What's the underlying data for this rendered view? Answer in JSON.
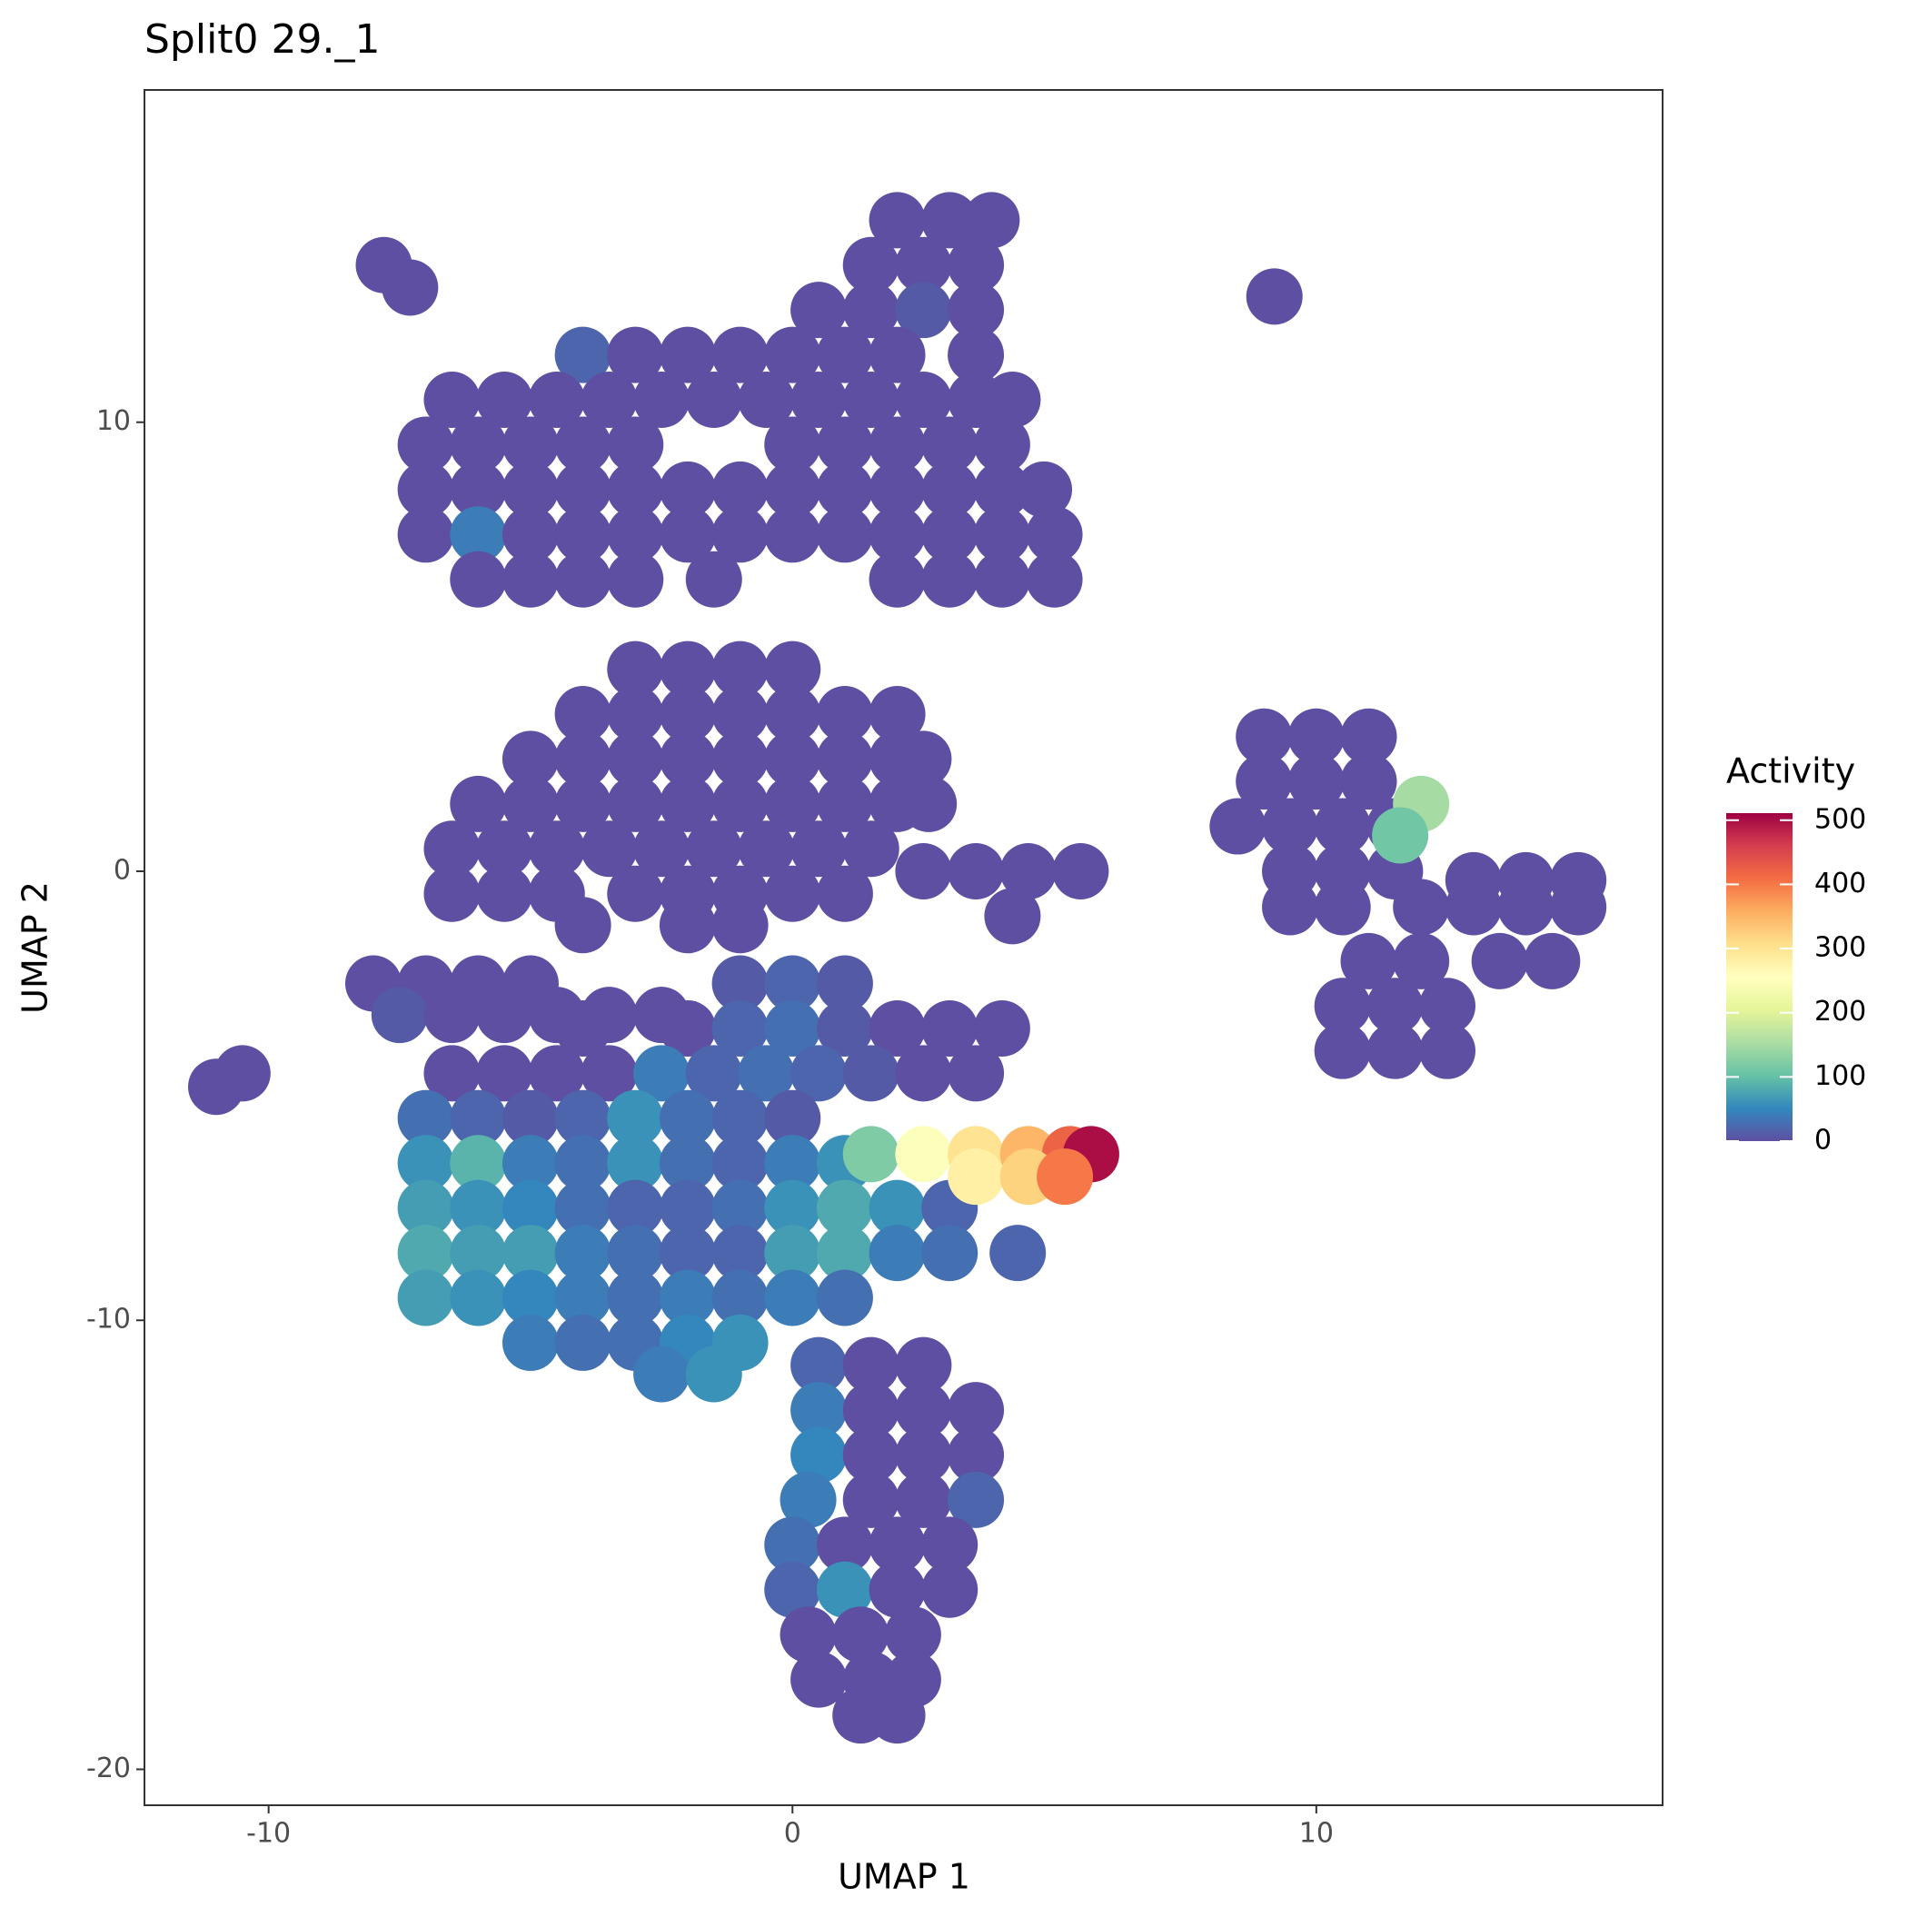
{
  "chart_data": {
    "type": "scatter",
    "title": "Split0 29._1",
    "x_label": "UMAP 1",
    "y_label": "UMAP 2",
    "legend_title": "Activity",
    "xlim": [
      -12.37,
      16.61
    ],
    "ylim": [
      -20.8,
      17.4
    ],
    "xticks": [
      -10,
      0,
      10
    ],
    "yticks": [
      -20,
      -10,
      0,
      10
    ],
    "colorlim": [
      0,
      511
    ],
    "colorticks": [
      0,
      100,
      200,
      300,
      400,
      500
    ],
    "palette": [
      "#5E4FA2",
      "#3288BD",
      "#66C2A5",
      "#ABDDA4",
      "#E6F598",
      "#FFFFBF",
      "#FEE08B",
      "#FDAE61",
      "#F46D43",
      "#D53E4F",
      "#9E0142"
    ],
    "x": [
      2,
      3,
      3.8,
      1.5,
      2.5,
      3.5,
      0.5,
      1.5,
      2.5,
      3.5,
      -4,
      -3,
      -2,
      -1,
      0,
      1,
      2,
      3.5,
      -6.5,
      -5.5,
      -4.5,
      -3.5,
      -2.5,
      -1.5,
      -0.5,
      0.5,
      1.5,
      2.5,
      3.5,
      4.2,
      -7,
      -6,
      -5,
      -4,
      -3,
      0,
      1,
      2,
      3,
      4,
      -7,
      -6,
      -5,
      -4,
      -3,
      -2,
      -1,
      0,
      1,
      2,
      3,
      4,
      4.8,
      -7,
      -6,
      -5,
      -4,
      -3,
      -2,
      -1,
      0,
      1,
      2,
      3,
      4,
      5,
      -6,
      -5,
      -4,
      -3,
      -1.5,
      2,
      3,
      4,
      5,
      -7.8,
      -7.3,
      9.2,
      -11,
      -10.5,
      -3,
      -2,
      -1,
      0,
      -4,
      -3,
      -2,
      -1,
      0,
      1,
      2,
      -5,
      -4,
      -3,
      -2,
      -1,
      0,
      1,
      2,
      2.5,
      -6,
      -5,
      -4,
      -3,
      -2,
      -1,
      0,
      1,
      2,
      2.6,
      -6.5,
      -5.5,
      -4.5,
      -3.5,
      -2.5,
      -1.5,
      -0.5,
      0.5,
      1.5,
      -6.5,
      -5.5,
      -4.5,
      -3,
      -2,
      -1,
      0,
      1,
      -4,
      -2,
      -1,
      2.5,
      3.5,
      4.5,
      5.5,
      4.2,
      -8,
      -7,
      -6,
      -5,
      -7.5,
      -6.5,
      -5.5,
      -4.5,
      -3.5,
      -2.5,
      -1,
      0,
      1,
      -4,
      -2,
      -1,
      0,
      1,
      2,
      3,
      4,
      -6.5,
      -5.5,
      -4.5,
      -3.5,
      -2.5,
      -1.5,
      -0.5,
      0.5,
      1.5,
      2.5,
      3.5,
      -7,
      -6,
      -5,
      -4,
      -3,
      -2,
      -1,
      0,
      -7,
      -6,
      -5,
      -4,
      -3,
      -2,
      -1,
      0,
      1,
      -7,
      -6,
      -5,
      -4,
      -3,
      -2,
      -1,
      0,
      1,
      2,
      3,
      -7,
      -6,
      -5,
      -4,
      -3,
      -2,
      -1,
      0,
      1,
      2,
      3,
      4.3,
      -7,
      -6,
      -5,
      -4,
      -3,
      -2,
      -1,
      0,
      1,
      -5,
      -4,
      -3,
      -2,
      -1,
      -2.5,
      -1.5,
      0.5,
      1.5,
      2.5,
      0.5,
      1.5,
      2.5,
      3.5,
      0.5,
      1.5,
      2.5,
      3.5,
      0.3,
      1.5,
      2.5,
      3.5,
      0,
      1,
      2,
      3,
      0,
      1,
      2,
      3,
      0.3,
      1.3,
      2.3,
      0.5,
      1.5,
      2.3,
      1.3,
      2,
      9,
      10,
      11,
      9,
      10,
      11,
      8.5,
      9.5,
      10.5,
      11.5,
      9.5,
      10.5,
      11.5,
      9.5,
      10.5,
      12,
      13,
      14,
      15,
      13,
      14,
      15,
      11,
      12,
      13.5,
      14.5,
      10.5,
      11.5,
      12.5,
      10.5,
      11.5,
      12.5,
      12,
      11.6,
      1.5,
      2.5,
      3.5,
      4.5,
      5.3,
      5.7,
      3.5,
      4.5,
      5.2
    ],
    "values": [
      14.5,
      14.5,
      14.5,
      13.5,
      13.5,
      13.5,
      12.5,
      12.5,
      12.5,
      12.5,
      11.5,
      11.5,
      11.5,
      11.5,
      11.5,
      11.5,
      11.5,
      11.5,
      10.5,
      10.5,
      10.5,
      10.5,
      10.5,
      10.5,
      10.5,
      10.5,
      10.5,
      10.5,
      10.5,
      10.5,
      9.5,
      9.5,
      9.5,
      9.5,
      9.5,
      9.5,
      9.5,
      9.5,
      9.5,
      9.5,
      8.5,
      8.5,
      8.5,
      8.5,
      8.5,
      8.5,
      8.5,
      8.5,
      8.5,
      8.5,
      8.5,
      8.5,
      8.5,
      7.5,
      7.5,
      7.5,
      7.5,
      7.5,
      7.5,
      7.5,
      7.5,
      7.5,
      7.5,
      7.5,
      7.5,
      7.5,
      6.5,
      6.5,
      6.5,
      6.5,
      6.5,
      6.5,
      6.5,
      6.5,
      6.5,
      13.5,
      13,
      12.8,
      -4.8,
      -4.5,
      4.5,
      4.5,
      4.5,
      4.5,
      3.5,
      3.5,
      3.5,
      3.5,
      3.5,
      3.5,
      3.5,
      2.5,
      2.5,
      2.5,
      2.5,
      2.5,
      2.5,
      2.5,
      2.5,
      2.5,
      1.5,
      1.5,
      1.5,
      1.5,
      1.5,
      1.5,
      1.5,
      1.5,
      1.5,
      1.5,
      0.5,
      0.5,
      0.5,
      0.5,
      0.5,
      0.5,
      0.5,
      0.5,
      0.5,
      -0.5,
      -0.5,
      -0.5,
      -0.5,
      -0.5,
      -0.5,
      -0.5,
      -0.5,
      -1.2,
      -1.2,
      -1.2,
      0,
      0,
      0,
      0,
      -1,
      -2.5,
      -2.5,
      -2.5,
      -2.5,
      -3.2,
      -3.2,
      -3.2,
      -3.2,
      -3.2,
      -3.2,
      -2.5,
      -2.5,
      -2.5,
      -3.5,
      -3.5,
      -3.5,
      -3.5,
      -3.5,
      -3.5,
      -3.5,
      -3.5,
      -4.5,
      -4.5,
      -4.5,
      -4.5,
      -4.5,
      -4.5,
      -4.5,
      -4.5,
      -4.5,
      -4.5,
      -4.5,
      -5.5,
      -5.5,
      -5.5,
      -5.5,
      -5.5,
      -5.5,
      -5.5,
      -5.5,
      -6.5,
      -6.5,
      -6.5,
      -6.5,
      -6.5,
      -6.5,
      -6.5,
      -6.5,
      -6.5,
      -7.5,
      -7.5,
      -7.5,
      -7.5,
      -7.5,
      -7.5,
      -7.5,
      -7.5,
      -7.5,
      -7.5,
      -7.5,
      -8.5,
      -8.5,
      -8.5,
      -8.5,
      -8.5,
      -8.5,
      -8.5,
      -8.5,
      -8.5,
      -8.5,
      -8.5,
      -8.5,
      -9.5,
      -9.5,
      -9.5,
      -9.5,
      -9.5,
      -9.5,
      -9.5,
      -9.5,
      -9.5,
      -10.5,
      -10.5,
      -10.5,
      -10.5,
      -10.5,
      -11.2,
      -11.2,
      -11,
      -11,
      -11,
      -12,
      -12,
      -12,
      -12,
      -13,
      -13,
      -13,
      -13,
      -14,
      -14,
      -14,
      -14,
      -15,
      -15,
      -15,
      -15,
      -16,
      -16,
      -16,
      -16,
      -17,
      -17,
      -17,
      -18,
      -18,
      -18,
      -18.8,
      -18.8,
      3,
      3,
      3,
      2,
      2,
      2,
      1,
      1,
      1,
      1,
      0,
      0,
      0,
      -0.8,
      -0.8,
      -0.8,
      -0.8,
      -0.8,
      -0.8,
      -0.2,
      -0.2,
      -0.2,
      -2,
      -2,
      -2,
      -2,
      -3,
      -3,
      -3,
      -4,
      -4,
      -4,
      1.5,
      0.8,
      -6.3,
      -6.3,
      -6.3,
      -6.3,
      -6.3,
      -6.3,
      -6.8,
      -6.8,
      -6.8
    ],
    "activity": [
      0,
      0,
      0,
      0,
      0,
      0,
      0,
      0,
      10,
      0,
      20,
      0,
      0,
      0,
      0,
      0,
      0,
      0,
      0,
      0,
      0,
      0,
      0,
      0,
      0,
      0,
      0,
      0,
      0,
      0,
      0,
      0,
      0,
      0,
      0,
      0,
      0,
      0,
      0,
      0,
      0,
      0,
      0,
      0,
      0,
      0,
      0,
      0,
      0,
      0,
      0,
      0,
      0,
      0,
      40,
      0,
      0,
      0,
      0,
      0,
      0,
      0,
      0,
      0,
      0,
      0,
      0,
      0,
      0,
      0,
      0,
      0,
      0,
      0,
      0,
      0,
      0,
      0,
      0,
      0,
      0,
      0,
      0,
      0,
      0,
      0,
      0,
      0,
      0,
      0,
      0,
      0,
      0,
      0,
      0,
      0,
      0,
      0,
      0,
      0,
      0,
      0,
      0,
      0,
      0,
      0,
      0,
      0,
      0,
      0,
      0,
      0,
      0,
      0,
      0,
      0,
      0,
      0,
      0,
      0,
      0,
      0,
      0,
      0,
      0,
      0,
      0,
      0,
      0,
      0,
      0,
      0,
      0,
      0,
      0,
      0,
      0,
      0,
      0,
      10,
      0,
      0,
      0,
      0,
      0,
      10,
      20,
      10,
      0,
      0,
      20,
      30,
      10,
      0,
      0,
      0,
      0,
      0,
      0,
      0,
      40,
      20,
      30,
      20,
      10,
      0,
      0,
      30,
      20,
      10,
      20,
      60,
      30,
      20,
      10,
      60,
      90,
      40,
      30,
      60,
      30,
      20,
      40,
      60,
      70,
      60,
      50,
      30,
      20,
      20,
      30,
      60,
      80,
      60,
      20,
      80,
      70,
      70,
      40,
      30,
      20,
      20,
      70,
      80,
      40,
      30,
      20,
      70,
      60,
      50,
      40,
      30,
      40,
      30,
      40,
      30,
      40,
      30,
      30,
      50,
      60,
      40,
      60,
      20,
      0,
      0,
      40,
      0,
      0,
      0,
      50,
      0,
      0,
      0,
      40,
      0,
      0,
      20,
      30,
      0,
      0,
      0,
      20,
      60,
      0,
      0,
      0,
      0,
      0,
      0,
      0,
      0,
      0,
      0,
      0,
      0,
      0,
      0,
      0,
      0,
      0,
      0,
      0,
      0,
      0,
      0,
      0,
      0,
      0,
      0,
      0,
      0,
      0,
      0,
      0,
      0,
      0,
      0,
      0,
      0,
      0,
      0,
      0,
      0,
      0,
      0,
      150,
      110,
      120,
      250,
      300,
      350,
      420,
      500,
      280,
      320,
      400
    ]
  }
}
